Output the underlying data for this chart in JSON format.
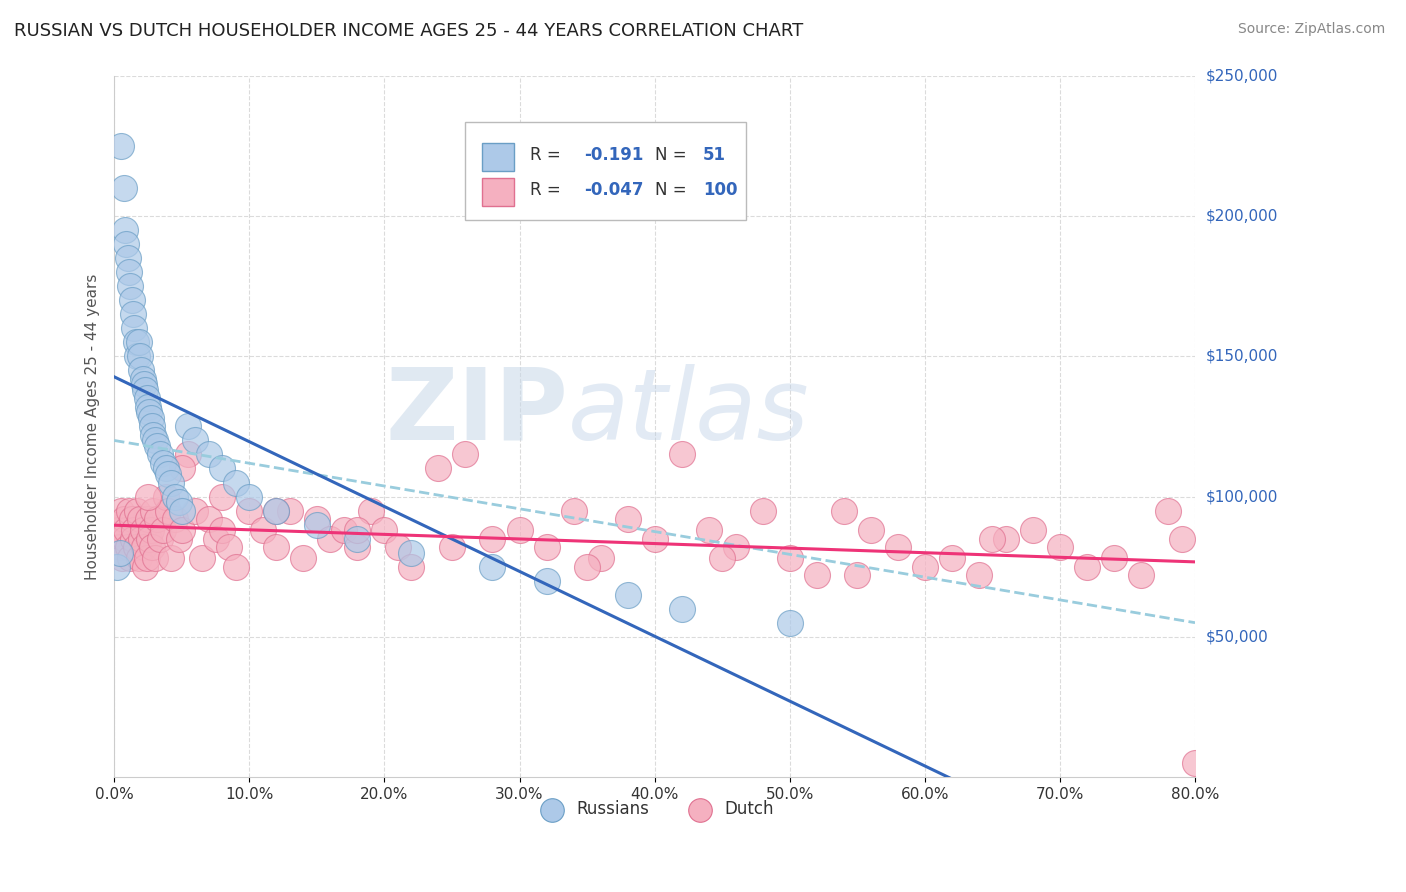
{
  "title": "RUSSIAN VS DUTCH HOUSEHOLDER INCOME AGES 25 - 44 YEARS CORRELATION CHART",
  "source": "Source: ZipAtlas.com",
  "ylabel": "Householder Income Ages 25 - 44 years",
  "xmin": 0.0,
  "xmax": 0.8,
  "ymin": 0,
  "ymax": 250000,
  "yticks": [
    50000,
    100000,
    150000,
    200000,
    250000
  ],
  "ytick_labels": [
    "$50,000",
    "$100,000",
    "$150,000",
    "$200,000",
    "$250,000"
  ],
  "xticks": [
    0.0,
    0.1,
    0.2,
    0.3,
    0.4,
    0.5,
    0.6,
    0.7,
    0.8
  ],
  "xtick_labels": [
    "0.0%",
    "10.0%",
    "20.0%",
    "30.0%",
    "40.0%",
    "50.0%",
    "60.0%",
    "70.0%",
    "80.0%"
  ],
  "russian_color": "#adc9e8",
  "dutch_color": "#f5b0c0",
  "russian_edge": "#6a9ec5",
  "dutch_edge": "#e07090",
  "regression_russian_color": "#3366bb",
  "regression_dutch_solid_color": "#ee3377",
  "regression_dutch_dashed_color": "#99ccdd",
  "watermark_zip": "ZIP",
  "watermark_atlas": "atlas",
  "legend_r_russian": "-0.191",
  "legend_n_russian": "51",
  "legend_r_dutch": "-0.047",
  "legend_n_dutch": "100",
  "background_color": "#ffffff",
  "grid_color": "#cccccc",
  "label_color": "#3366bb",
  "russians_x": [
    0.002,
    0.004,
    0.005,
    0.007,
    0.008,
    0.009,
    0.01,
    0.011,
    0.012,
    0.013,
    0.014,
    0.015,
    0.016,
    0.017,
    0.018,
    0.019,
    0.02,
    0.021,
    0.022,
    0.023,
    0.024,
    0.025,
    0.026,
    0.027,
    0.028,
    0.029,
    0.03,
    0.032,
    0.034,
    0.036,
    0.038,
    0.04,
    0.042,
    0.045,
    0.048,
    0.05,
    0.055,
    0.06,
    0.07,
    0.08,
    0.09,
    0.1,
    0.12,
    0.15,
    0.18,
    0.22,
    0.28,
    0.32,
    0.38,
    0.42,
    0.5
  ],
  "russians_y": [
    75000,
    80000,
    225000,
    210000,
    195000,
    190000,
    185000,
    180000,
    175000,
    170000,
    165000,
    160000,
    155000,
    150000,
    155000,
    150000,
    145000,
    142000,
    140000,
    138000,
    135000,
    132000,
    130000,
    128000,
    125000,
    122000,
    120000,
    118000,
    115000,
    112000,
    110000,
    108000,
    105000,
    100000,
    98000,
    95000,
    125000,
    120000,
    115000,
    110000,
    105000,
    100000,
    95000,
    90000,
    85000,
    80000,
    75000,
    70000,
    65000,
    60000,
    55000
  ],
  "dutch_x": [
    0.001,
    0.002,
    0.003,
    0.004,
    0.005,
    0.006,
    0.007,
    0.008,
    0.009,
    0.01,
    0.011,
    0.012,
    0.013,
    0.014,
    0.015,
    0.016,
    0.017,
    0.018,
    0.019,
    0.02,
    0.021,
    0.022,
    0.023,
    0.024,
    0.025,
    0.026,
    0.027,
    0.028,
    0.029,
    0.03,
    0.032,
    0.034,
    0.036,
    0.038,
    0.04,
    0.042,
    0.045,
    0.048,
    0.05,
    0.055,
    0.06,
    0.065,
    0.07,
    0.075,
    0.08,
    0.085,
    0.09,
    0.1,
    0.11,
    0.12,
    0.13,
    0.14,
    0.15,
    0.16,
    0.17,
    0.18,
    0.19,
    0.2,
    0.21,
    0.22,
    0.24,
    0.26,
    0.28,
    0.3,
    0.32,
    0.34,
    0.36,
    0.38,
    0.4,
    0.42,
    0.44,
    0.46,
    0.48,
    0.5,
    0.52,
    0.54,
    0.56,
    0.58,
    0.6,
    0.62,
    0.64,
    0.66,
    0.68,
    0.7,
    0.72,
    0.74,
    0.76,
    0.78,
    0.79,
    0.8,
    0.025,
    0.05,
    0.08,
    0.12,
    0.18,
    0.25,
    0.35,
    0.45,
    0.55,
    0.65
  ],
  "dutch_y": [
    90000,
    85000,
    88000,
    82000,
    95000,
    78000,
    92000,
    85000,
    88000,
    82000,
    95000,
    78000,
    92000,
    85000,
    88000,
    82000,
    95000,
    78000,
    92000,
    85000,
    88000,
    82000,
    75000,
    78000,
    92000,
    85000,
    88000,
    82000,
    95000,
    78000,
    92000,
    85000,
    88000,
    100000,
    95000,
    78000,
    92000,
    85000,
    88000,
    115000,
    95000,
    78000,
    92000,
    85000,
    88000,
    82000,
    75000,
    95000,
    88000,
    82000,
    95000,
    78000,
    92000,
    85000,
    88000,
    82000,
    95000,
    88000,
    82000,
    75000,
    110000,
    115000,
    85000,
    88000,
    82000,
    95000,
    78000,
    92000,
    85000,
    115000,
    88000,
    82000,
    95000,
    78000,
    72000,
    95000,
    88000,
    82000,
    75000,
    78000,
    72000,
    85000,
    88000,
    82000,
    75000,
    78000,
    72000,
    95000,
    85000,
    5000,
    100000,
    110000,
    100000,
    95000,
    88000,
    82000,
    75000,
    78000,
    72000,
    85000
  ]
}
